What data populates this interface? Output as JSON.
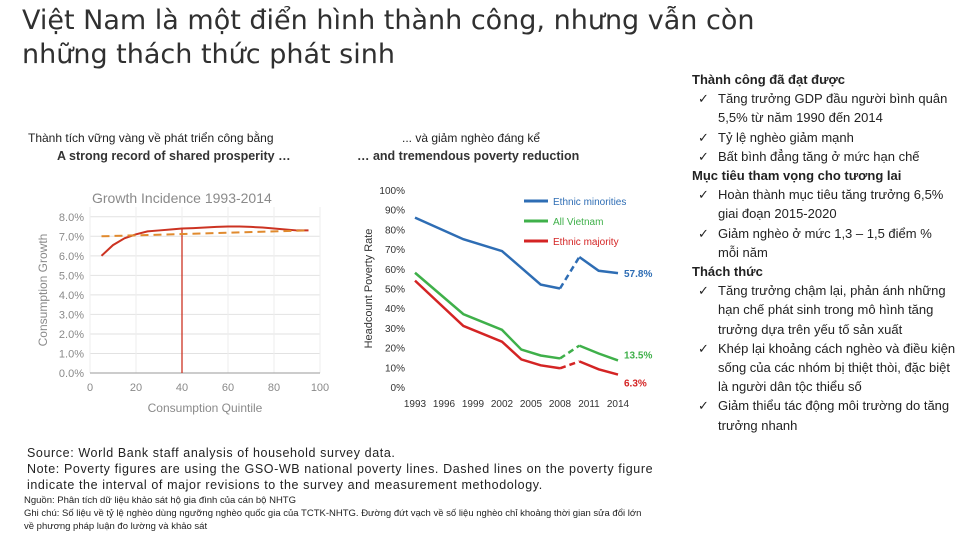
{
  "title": "Việt Nam là một điển hình thành công, nhưng vẫn còn những thách thức phát sinh",
  "left_panel": {
    "caption_vn": "Thành tích vững vàng về phát triển công bằng",
    "caption_en": "A strong record of shared prosperity …"
  },
  "right_panel": {
    "caption_vn": "... và giảm nghèo đáng kể",
    "caption_en": "… and tremendous poverty reduction"
  },
  "chart_data": [
    {
      "type": "line",
      "title": "Growth Incidence 1993-2014",
      "xlabel": "Consumption Quintile",
      "ylabel": "Consumption Growth",
      "x_ticks": [
        "0",
        "20",
        "40",
        "60",
        "80",
        "100"
      ],
      "y_ticks": [
        "0.0%",
        "1.0%",
        "2.0%",
        "3.0%",
        "4.0%",
        "5.0%",
        "6.0%",
        "7.0%",
        "8.0%"
      ],
      "xlim": [
        0,
        100
      ],
      "ylim": [
        0,
        8.5
      ],
      "grid": true,
      "series": [
        {
          "style": "solid",
          "color": "#cc3322",
          "x": [
            5,
            10,
            15,
            20,
            25,
            30,
            35,
            40,
            45,
            50,
            55,
            60,
            65,
            70,
            75,
            80,
            85,
            90,
            95
          ],
          "y": [
            6.0,
            6.55,
            6.9,
            7.1,
            7.25,
            7.3,
            7.35,
            7.4,
            7.42,
            7.45,
            7.48,
            7.5,
            7.5,
            7.48,
            7.45,
            7.4,
            7.35,
            7.3,
            7.3
          ]
        },
        {
          "style": "dashed",
          "color": "#e08a2e",
          "x": [
            5,
            95
          ],
          "y": [
            7.0,
            7.3
          ]
        }
      ],
      "vline_x": 40
    },
    {
      "type": "line",
      "ylabel": "Headcount Poverty Rate",
      "x_ticks": [
        "1993",
        "1996",
        "1999",
        "2002",
        "2005",
        "2008",
        "2011",
        "2014"
      ],
      "y_ticks": [
        "0%",
        "10%",
        "20%",
        "30%",
        "40%",
        "50%",
        "60%",
        "70%",
        "80%",
        "90%",
        "100%"
      ],
      "ylim": [
        0,
        100
      ],
      "legend_position": "top-right",
      "series": [
        {
          "name": "Ethnic minorities",
          "color": "#2e6db4",
          "solid_x": [
            1993,
            1998,
            2002,
            2006,
            2008
          ],
          "solid_y": [
            86,
            75,
            69,
            52,
            50
          ],
          "dashed_x": [
            2008,
            2010
          ],
          "dashed_y": [
            50,
            66
          ],
          "solid2_x": [
            2010,
            2012,
            2014
          ],
          "solid2_y": [
            66,
            59,
            57.8
          ],
          "end_label": "57.8%"
        },
        {
          "name": "All Vietnam",
          "color": "#3fb04a",
          "solid_x": [
            1993,
            1998,
            2002,
            2004,
            2006,
            2008
          ],
          "solid_y": [
            58,
            37,
            29,
            19,
            16,
            14.5
          ],
          "dashed_x": [
            2008,
            2010
          ],
          "dashed_y": [
            14.5,
            21
          ],
          "solid2_x": [
            2010,
            2012,
            2014
          ],
          "solid2_y": [
            21,
            17,
            13.5
          ],
          "end_label": "13.5%"
        },
        {
          "name": "Ethnic majority",
          "color": "#d42424",
          "solid_x": [
            1993,
            1998,
            2002,
            2004,
            2006,
            2008
          ],
          "solid_y": [
            54,
            31,
            23,
            14,
            11,
            9.5
          ],
          "dashed_x": [
            2008,
            2010
          ],
          "dashed_y": [
            9.5,
            13
          ],
          "solid2_x": [
            2010,
            2012,
            2014
          ],
          "solid2_y": [
            13,
            9,
            6.3
          ],
          "end_label": "6.3%"
        }
      ]
    }
  ],
  "source_note": {
    "source": "Source: World Bank staff analysis of household survey data.",
    "note": "Note: Poverty figures are using the GSO-WB national poverty lines. Dashed lines on the poverty figure indicate the interval of major revisions to the survey and measurement methodology."
  },
  "notes_vn": {
    "line1": "Nguồn: Phân tích dữ liệu khảo sát hộ gia đình của cán bộ NHTG",
    "line2": "Ghi chú: Số liệu về tỷ lệ nghèo dùng ngưỡng nghèo quốc gia của TCTK-NHTG. Đường đứt vạch về số liệu nghèo chỉ khoảng thời gian sửa đổi lớn về phương pháp luận đo lường và khảo sát"
  },
  "summary": {
    "check_glyph": "✓",
    "sections": [
      {
        "heading": "Thành công đã đạt được",
        "items": [
          "Tăng trưởng GDP đầu người bình quân 5,5% từ năm 1990 đến 2014",
          "Tỷ lệ nghèo giảm mạnh",
          "Bất bình đẳng tăng ở mức hạn chế"
        ]
      },
      {
        "heading": "Mục tiêu tham vọng cho tương lai",
        "items": [
          "Hoàn thành mục tiêu tăng trưởng 6,5% giai đoạn 2015-2020",
          "Giảm nghèo ở mức 1,3 – 1,5 điểm % mỗi năm"
        ]
      },
      {
        "heading": "Thách thức",
        "items": [
          "Tăng trưởng chậm lại, phản ánh những hạn chế phát sinh trong mô hình tăng trưởng dựa trên yếu tố sản xuất",
          "Khép lại khoảng cách nghèo và điều kiện sống của các nhóm bị thiệt thòi, đặc biệt là người dân tộc thiểu số",
          "Giảm thiểu tác động môi trường do tăng trưởng nhanh"
        ]
      }
    ]
  }
}
